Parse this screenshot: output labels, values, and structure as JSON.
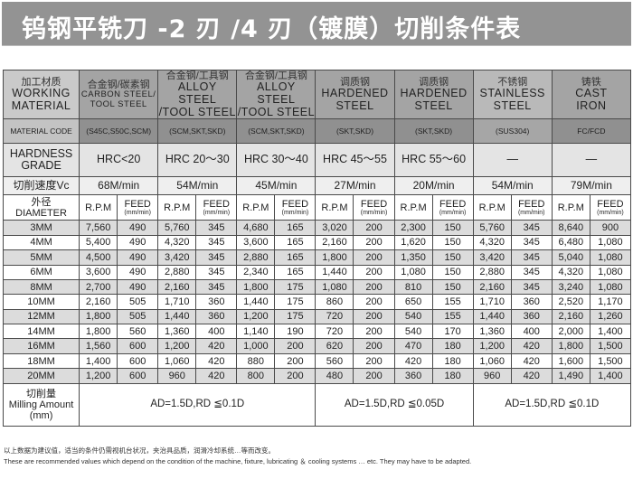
{
  "title": "钨钢平铣刀 -2 刃 /4 刃（镀膜）切削条件表",
  "header": {
    "working_material": {
      "zh": "加工材质",
      "en1": "WORKING",
      "en2": "MATERIAL"
    },
    "material_code_label": "MATERIAL CODE",
    "hardness_label": {
      "en1": "HARDNESS",
      "en2": "GRADE"
    },
    "speed_label": "切削速度Vc",
    "diameter_label": {
      "zh": "外径",
      "en": "DIAMETER"
    },
    "rpm_label": "R.P.M",
    "feed_label": "FEED",
    "feed_unit": "(mm/min)"
  },
  "materials": [
    {
      "zh": "合金钢/碳素钢",
      "en1": "CARBON STEEL/",
      "en2": "TOOL STEEL",
      "code": "(S45C,S50C,SCM)",
      "hardness": "HRC<20",
      "speed": "68M/min"
    },
    {
      "zh": "合金钢/工具钢",
      "en1": "ALLOY STEEL",
      "en2": "/TOOL STEEL",
      "code": "(SCM,SKT,SKD)",
      "hardness": "HRC 20～30",
      "speed": "54M/min"
    },
    {
      "zh": "合金钢/工具钢",
      "en1": "ALLOY STEEL",
      "en2": "/TOOL STEEL",
      "code": "(SCM,SKT,SKD)",
      "hardness": "HRC 30～40",
      "speed": "45M/min"
    },
    {
      "zh": "调质钢",
      "en1": "HARDENED",
      "en2": "STEEL",
      "code": "(SKT,SKD)",
      "hardness": "HRC 45～55",
      "speed": "27M/min"
    },
    {
      "zh": "调质钢",
      "en1": "HARDENED",
      "en2": "STEEL",
      "code": "(SKT,SKD)",
      "hardness": "HRC 55～60",
      "speed": "20M/min"
    },
    {
      "zh": "不锈钢",
      "en1": "STAINLESS",
      "en2": "STEEL",
      "code": "(SUS304)",
      "hardness": "—",
      "speed": "54M/min"
    },
    {
      "zh": "铸铁",
      "en1": "CAST",
      "en2": "IRON",
      "code": "FC/FCD",
      "hardness": "—",
      "speed": "79M/min"
    }
  ],
  "rows": [
    {
      "diameter": "3MM",
      "values": [
        "7,560",
        "490",
        "5,760",
        "345",
        "4,680",
        "165",
        "3,020",
        "200",
        "2,300",
        "150",
        "5,760",
        "345",
        "8,640",
        "900"
      ]
    },
    {
      "diameter": "4MM",
      "values": [
        "5,400",
        "490",
        "4,320",
        "345",
        "3,600",
        "165",
        "2,160",
        "200",
        "1,620",
        "150",
        "4,320",
        "345",
        "6,480",
        "1,080"
      ]
    },
    {
      "diameter": "5MM",
      "values": [
        "4,500",
        "490",
        "3,420",
        "345",
        "2,880",
        "165",
        "1,800",
        "200",
        "1,350",
        "150",
        "3,420",
        "345",
        "5,040",
        "1,080"
      ]
    },
    {
      "diameter": "6MM",
      "values": [
        "3,600",
        "490",
        "2,880",
        "345",
        "2,340",
        "165",
        "1,440",
        "200",
        "1,080",
        "150",
        "2,880",
        "345",
        "4,320",
        "1,080"
      ]
    },
    {
      "diameter": "8MM",
      "values": [
        "2,700",
        "490",
        "2,160",
        "345",
        "1,800",
        "175",
        "1,080",
        "200",
        "810",
        "150",
        "2,160",
        "345",
        "3,240",
        "1,080"
      ]
    },
    {
      "diameter": "10MM",
      "values": [
        "2,160",
        "505",
        "1,710",
        "360",
        "1,440",
        "175",
        "860",
        "200",
        "650",
        "155",
        "1,710",
        "360",
        "2,520",
        "1,170"
      ]
    },
    {
      "diameter": "12MM",
      "values": [
        "1,800",
        "505",
        "1,440",
        "360",
        "1,200",
        "175",
        "720",
        "200",
        "540",
        "155",
        "1,440",
        "360",
        "2,160",
        "1,260"
      ]
    },
    {
      "diameter": "14MM",
      "values": [
        "1,800",
        "560",
        "1,360",
        "400",
        "1,140",
        "190",
        "720",
        "200",
        "540",
        "170",
        "1,360",
        "400",
        "2,000",
        "1,400"
      ]
    },
    {
      "diameter": "16MM",
      "values": [
        "1,560",
        "600",
        "1,200",
        "420",
        "1,000",
        "200",
        "620",
        "200",
        "470",
        "180",
        "1,200",
        "420",
        "1,800",
        "1,500"
      ]
    },
    {
      "diameter": "18MM",
      "values": [
        "1,400",
        "600",
        "1,060",
        "420",
        "880",
        "200",
        "560",
        "200",
        "420",
        "180",
        "1,060",
        "420",
        "1,600",
        "1,500"
      ]
    },
    {
      "diameter": "20MM",
      "values": [
        "1,200",
        "600",
        "960",
        "420",
        "800",
        "200",
        "480",
        "200",
        "360",
        "180",
        "960",
        "420",
        "1,490",
        "1,400"
      ]
    }
  ],
  "milling": {
    "label_zh": "切削量",
    "label_en": "Milling Amount",
    "label_unit": "(mm)",
    "values": [
      "AD=1.5D,RD ≦0.1D",
      "AD=1.5D,RD ≦0.05D",
      "AD=1.5D,RD ≦0.1D"
    ]
  },
  "notes": {
    "zh": "以上数据为建议值，适当的条件仍需视机台状况，夹治具品质，润滑冷却系统…等而改变。",
    "en": "These are recommended values which depend on the condition of the machine, fixture, lubricating ＆ cooling systems … etc. They may have to be adapted."
  }
}
